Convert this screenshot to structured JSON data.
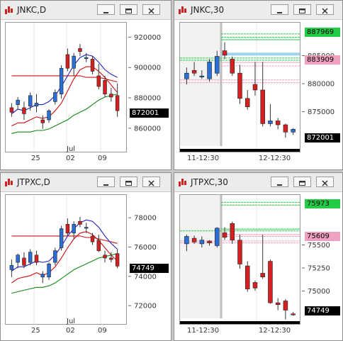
{
  "windows": [
    {
      "id": "jnkc_d",
      "title": "JNKC,D",
      "y_ticks": [
        "920000",
        "900000",
        "880000",
        "860000"
      ],
      "x_labels": [
        "25",
        "Jul",
        "02",
        "09"
      ],
      "price_tag": "872001"
    },
    {
      "id": "jnkc_30",
      "title": "JNKC,30",
      "y_ticks": [
        "885000",
        "880000",
        "875000"
      ],
      "x_labels": [
        "11-12:30",
        "12-12:30"
      ],
      "price_tags": [
        {
          "text": "887969",
          "color": "#22cc44"
        },
        {
          "text": "883909",
          "color": "#f0a0c0"
        },
        {
          "text": "872001",
          "color": "#000000"
        }
      ]
    },
    {
      "id": "jtpxc_d",
      "title": "JTPXC,D",
      "y_ticks": [
        "78000",
        "76000",
        "74000",
        "72000"
      ],
      "x_labels": [
        "25",
        "Jul",
        "02",
        "09"
      ],
      "price_tag": "74749"
    },
    {
      "id": "jtpxc_30",
      "title": "JTPXC,30",
      "y_ticks": [
        "75500",
        "75250",
        "75000"
      ],
      "x_labels": [
        "11-12:30",
        "12-12:30"
      ],
      "price_tags": [
        {
          "text": "75973",
          "color": "#22cc44"
        },
        {
          "text": "75609",
          "color": "#f0a0c0"
        },
        {
          "text": "74749",
          "color": "#000000"
        }
      ]
    }
  ],
  "colors": {
    "up_candle": "#2a6fd6",
    "down_candle": "#d42020",
    "ma_blue": "#2020c8",
    "ma_red": "#cc1010",
    "ma_green": "#118811",
    "pivot_green": "#22cc44",
    "pivot_pink": "#f0a0c0"
  },
  "chart_data": [
    {
      "type": "candlestick",
      "title": "JNKC,D",
      "ylim": [
        845000,
        930000
      ],
      "y_ticks": [
        920000,
        900000,
        880000,
        860000
      ],
      "candles": [
        {
          "o": 874000,
          "h": 877000,
          "l": 868000,
          "c": 871000
        },
        {
          "o": 876000,
          "h": 881000,
          "l": 873000,
          "c": 879000
        },
        {
          "o": 874000,
          "h": 878000,
          "l": 866000,
          "c": 870000
        },
        {
          "o": 875000,
          "h": 884000,
          "l": 872000,
          "c": 882000
        },
        {
          "o": 875000,
          "h": 883000,
          "l": 871000,
          "c": 877000
        },
        {
          "o": 866000,
          "h": 869000,
          "l": 860000,
          "c": 864000
        },
        {
          "o": 866000,
          "h": 873000,
          "l": 864000,
          "c": 872000
        },
        {
          "o": 878000,
          "h": 886000,
          "l": 876000,
          "c": 884000
        },
        {
          "o": 883000,
          "h": 902000,
          "l": 880000,
          "c": 900000
        },
        {
          "o": 909000,
          "h": 913000,
          "l": 898000,
          "c": 900000
        },
        {
          "o": 900000,
          "h": 910000,
          "l": 895000,
          "c": 908000
        },
        {
          "o": 913000,
          "h": 916000,
          "l": 908000,
          "c": 911000
        },
        {
          "o": 907000,
          "h": 910000,
          "l": 904000,
          "c": 907000
        },
        {
          "o": 906000,
          "h": 908000,
          "l": 896000,
          "c": 898000
        },
        {
          "o": 895000,
          "h": 903000,
          "l": 886000,
          "c": 888000
        },
        {
          "o": 892000,
          "h": 895000,
          "l": 881000,
          "c": 883000
        },
        {
          "o": 883000,
          "h": 887000,
          "l": 878000,
          "c": 881000
        },
        {
          "o": 882000,
          "h": 890000,
          "l": 868000,
          "c": 872001
        }
      ],
      "ma_blue": [
        870000,
        873000,
        872000,
        874000,
        876000,
        876000,
        878000,
        882000,
        888000,
        895000,
        902000,
        907000,
        909000,
        908000,
        904000,
        899000,
        896000,
        894000
      ],
      "ma_red": [
        895000,
        895000,
        895000,
        895000,
        895000,
        895000,
        895000,
        895000,
        895000,
        895000,
        895000,
        895000,
        894000,
        894000,
        894000,
        893000,
        892000,
        891000
      ],
      "ma_lower_red": [
        862000,
        864000,
        864000,
        866000,
        868000,
        867000,
        868000,
        872000,
        877000,
        885000,
        893000,
        899000,
        901000,
        901000,
        898000,
        894000,
        889000,
        884000
      ],
      "ma_green": [
        857000,
        858000,
        858000,
        858000,
        859000,
        859000,
        860000,
        862000,
        864000,
        866000,
        869000,
        871000,
        873000,
        876000,
        879000,
        881000,
        882000,
        883000
      ]
    },
    {
      "type": "candlestick",
      "title": "JNKC,30",
      "ylim": [
        868000,
        891000
      ],
      "y_ticks": [
        885000,
        880000,
        875000
      ],
      "candles": [
        {
          "o": 881000,
          "h": 883000,
          "l": 880000,
          "c": 882000
        },
        {
          "o": 882500,
          "h": 884000,
          "l": 881500,
          "c": 882000
        },
        {
          "o": 881500,
          "h": 882500,
          "l": 881000,
          "c": 881500
        },
        {
          "o": 881000,
          "h": 884500,
          "l": 880500,
          "c": 884000
        },
        {
          "o": 882000,
          "h": 886000,
          "l": 881500,
          "c": 885000
        },
        {
          "o": 886000,
          "h": 887500,
          "l": 884500,
          "c": 885200
        },
        {
          "o": 884500,
          "h": 885000,
          "l": 881500,
          "c": 882000
        },
        {
          "o": 882000,
          "h": 883500,
          "l": 876500,
          "c": 877500
        },
        {
          "o": 877500,
          "h": 879000,
          "l": 875500,
          "c": 876000
        },
        {
          "o": 880000,
          "h": 884000,
          "l": 878000,
          "c": 879000
        },
        {
          "o": 879000,
          "h": 884000,
          "l": 872500,
          "c": 873000
        },
        {
          "o": 873000,
          "h": 876500,
          "l": 872500,
          "c": 873500
        },
        {
          "o": 873500,
          "h": 874000,
          "l": 872000,
          "c": 872800
        },
        {
          "o": 872800,
          "h": 873000,
          "l": 870500,
          "c": 871500
        },
        {
          "o": 871500,
          "h": 872200,
          "l": 871000,
          "c": 872001
        }
      ],
      "pivot_green_levels": [
        889000,
        888400,
        887969,
        884700,
        884300
      ],
      "pivot_pink_levels": [
        883909,
        883300,
        880800,
        880300
      ]
    },
    {
      "type": "candlestick",
      "title": "JTPXC,D",
      "ylim": [
        70800,
        79600
      ],
      "y_ticks": [
        78000,
        76000,
        74000,
        72000
      ],
      "candles": [
        {
          "o": 74500,
          "h": 75200,
          "l": 74000,
          "c": 74800
        },
        {
          "o": 75000,
          "h": 75600,
          "l": 74600,
          "c": 75500
        },
        {
          "o": 75300,
          "h": 75700,
          "l": 74600,
          "c": 74800
        },
        {
          "o": 75000,
          "h": 75900,
          "l": 74800,
          "c": 75700
        },
        {
          "o": 75500,
          "h": 75800,
          "l": 74800,
          "c": 75000
        },
        {
          "o": 74000,
          "h": 74400,
          "l": 73600,
          "c": 74200
        },
        {
          "o": 74000,
          "h": 75000,
          "l": 73800,
          "c": 74900
        },
        {
          "o": 75000,
          "h": 76000,
          "l": 74800,
          "c": 75800
        },
        {
          "o": 76000,
          "h": 77500,
          "l": 75800,
          "c": 77300
        },
        {
          "o": 77600,
          "h": 78000,
          "l": 76800,
          "c": 77000
        },
        {
          "o": 77000,
          "h": 77800,
          "l": 76600,
          "c": 77600
        },
        {
          "o": 77800,
          "h": 78100,
          "l": 77400,
          "c": 77600
        },
        {
          "o": 77400,
          "h": 77700,
          "l": 77000,
          "c": 77400
        },
        {
          "o": 76800,
          "h": 77000,
          "l": 76200,
          "c": 76400
        },
        {
          "o": 76500,
          "h": 76900,
          "l": 75700,
          "c": 75800
        },
        {
          "o": 75500,
          "h": 75800,
          "l": 75000,
          "c": 75300
        },
        {
          "o": 75300,
          "h": 75700,
          "l": 75000,
          "c": 75200
        },
        {
          "o": 75600,
          "h": 75900,
          "l": 74600,
          "c": 74749
        }
      ],
      "ma_blue": [
        74400,
        74700,
        74700,
        74900,
        75100,
        75000,
        75100,
        75500,
        76100,
        76800,
        77300,
        77700,
        77900,
        77800,
        77400,
        76800,
        76300,
        75900
      ],
      "ma_red": [
        76800,
        76800,
        76800,
        76800,
        76800,
        76800,
        76800,
        76800,
        76800,
        76800,
        76800,
        76800,
        76700,
        76700,
        76600,
        76500,
        76400,
        76300
      ],
      "ma_lower_red": [
        73600,
        73900,
        74000,
        74100,
        74300,
        74100,
        74300,
        74700,
        75300,
        76000,
        76600,
        77000,
        77100,
        76900,
        76500,
        76000,
        75500,
        75100
      ],
      "ma_green": [
        72900,
        73000,
        73100,
        73200,
        73300,
        73300,
        73400,
        73600,
        73900,
        74200,
        74500,
        74700,
        74900,
        75100,
        75300,
        75400,
        75500,
        75600
      ]
    },
    {
      "type": "candlestick",
      "title": "JTPXC,30",
      "ylim": [
        74650,
        76050
      ],
      "y_ticks": [
        75500,
        75250,
        75000
      ],
      "candles": [
        {
          "o": 75520,
          "h": 75620,
          "l": 75440,
          "c": 75600
        },
        {
          "o": 75580,
          "h": 75610,
          "l": 75520,
          "c": 75540
        },
        {
          "o": 75520,
          "h": 75600,
          "l": 75480,
          "c": 75560
        },
        {
          "o": 75550,
          "h": 75560,
          "l": 75500,
          "c": 75530
        },
        {
          "o": 75500,
          "h": 75700,
          "l": 75480,
          "c": 75690
        },
        {
          "o": 75640,
          "h": 75700,
          "l": 75560,
          "c": 75590
        },
        {
          "o": 75740,
          "h": 75760,
          "l": 75520,
          "c": 75560
        },
        {
          "o": 75560,
          "h": 75620,
          "l": 75250,
          "c": 75300
        },
        {
          "o": 75280,
          "h": 75330,
          "l": 75000,
          "c": 75030
        },
        {
          "o": 75100,
          "h": 75120,
          "l": 75010,
          "c": 75040
        },
        {
          "o": 75200,
          "h": 75620,
          "l": 75140,
          "c": 75160
        },
        {
          "o": 75330,
          "h": 75350,
          "l": 74870,
          "c": 74880
        },
        {
          "o": 74880,
          "h": 74930,
          "l": 74800,
          "c": 74860
        },
        {
          "o": 74900,
          "h": 74920,
          "l": 74700,
          "c": 74800
        },
        {
          "o": 74760,
          "h": 74780,
          "l": 74740,
          "c": 74749
        }
      ],
      "pivot_green_levels": [
        75970,
        75940,
        75680,
        75660
      ],
      "pivot_pink_levels": [
        75620,
        75600,
        75550,
        75530
      ]
    }
  ]
}
